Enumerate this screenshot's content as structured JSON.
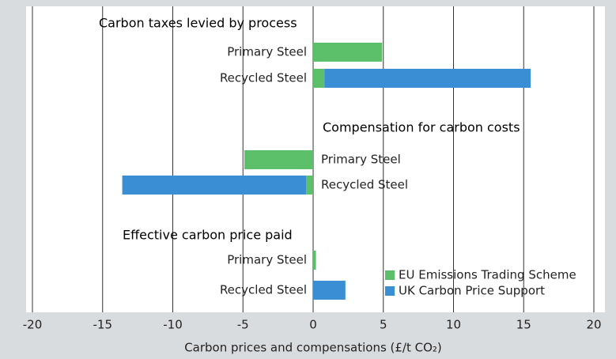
{
  "chart_data": {
    "type": "stacked-bar-horizontal",
    "groups": [
      "Carbon taxes levied by process",
      "Compensation for carbon costs",
      "Effective carbon price paid"
    ],
    "categories": [
      "Primary Steel",
      "Recycled Steel",
      "Primary Steel",
      "Recycled Steel",
      "Primary Steel",
      "Recycled Steel"
    ],
    "series": [
      {
        "name": "EU Emissions Trading Scheme",
        "color": "#5cbf6a",
        "values": [
          4.9,
          0.8,
          -4.9,
          -0.5,
          0.2,
          0
        ]
      },
      {
        "name": "UK Carbon Price Support",
        "color": "#3a8fd4",
        "values": [
          0,
          14.7,
          0,
          -13.1,
          0,
          2.3
        ]
      }
    ],
    "xlabel": "Carbon prices and compensations (£/t CO₂)",
    "xlim": [
      -20,
      20
    ],
    "xticks": [
      -20,
      -15,
      -10,
      -5,
      0,
      5,
      10,
      15,
      20
    ],
    "grid": true,
    "legend": "lower right"
  }
}
